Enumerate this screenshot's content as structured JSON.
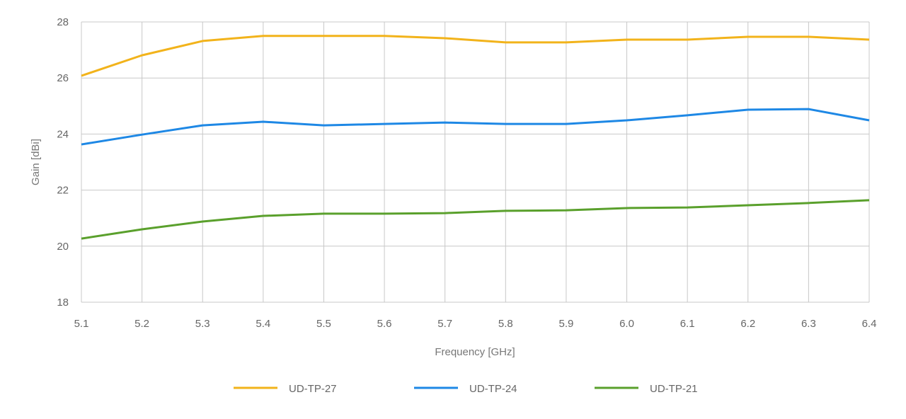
{
  "chart_data": {
    "type": "line",
    "title": "",
    "xlabel": "Frequency [GHz]",
    "ylabel": "Gain [dBi]",
    "xlim": [
      5.1,
      6.4
    ],
    "ylim": [
      18,
      28
    ],
    "grid": true,
    "legend_position": "bottom",
    "x": [
      5.1,
      5.2,
      5.3,
      5.4,
      5.5,
      5.6,
      5.7,
      5.8,
      5.9,
      6.0,
      6.1,
      6.2,
      6.3,
      6.4
    ],
    "x_tick_labels": [
      "5.1",
      "5.2",
      "5.3",
      "5.4",
      "5.5",
      "5.6",
      "5.7",
      "5.8",
      "5.9",
      "6.0",
      "6.1",
      "6.2",
      "6.3",
      "6.4"
    ],
    "y_ticks": [
      18,
      20,
      22,
      24,
      26,
      28
    ],
    "y_tick_labels": [
      "18",
      "20",
      "22",
      "24",
      "26",
      "28"
    ],
    "series": [
      {
        "name": "UD-TP-27",
        "color": "#f2b31b",
        "values": [
          26.08,
          26.81,
          27.32,
          27.5,
          27.5,
          27.5,
          27.42,
          27.27,
          27.27,
          27.37,
          27.37,
          27.47,
          27.47,
          27.37
        ]
      },
      {
        "name": "UD-TP-24",
        "color": "#1e88e5",
        "values": [
          23.63,
          23.98,
          24.31,
          24.44,
          24.31,
          24.36,
          24.41,
          24.36,
          24.36,
          24.49,
          24.67,
          24.87,
          24.89,
          24.49
        ]
      },
      {
        "name": "UD-TP-21",
        "color": "#5aa02c",
        "values": [
          20.27,
          20.6,
          20.88,
          21.08,
          21.16,
          21.16,
          21.18,
          21.26,
          21.28,
          21.36,
          21.38,
          21.46,
          21.54,
          21.64
        ]
      }
    ]
  }
}
